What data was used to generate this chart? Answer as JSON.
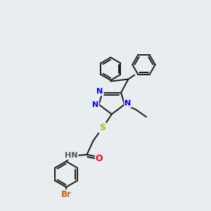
{
  "background_color": "#e8edf0",
  "bond_color": "#1a1a1a",
  "atom_colors": {
    "N": "#0000ee",
    "O": "#ee0000",
    "S": "#bbbb00",
    "Br": "#cc6600",
    "H": "#555555",
    "C": "#1a1a1a"
  },
  "lw": 1.4,
  "figsize": [
    3.0,
    3.0
  ],
  "dpi": 100
}
